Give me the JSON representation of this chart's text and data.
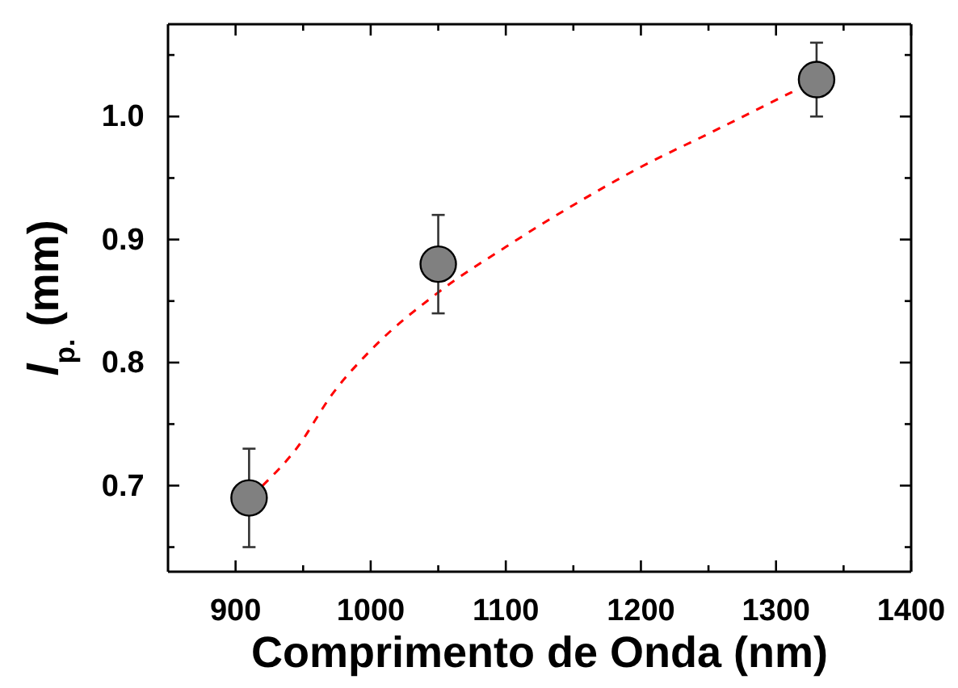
{
  "chart_data": {
    "type": "scatter",
    "xlabel": "Comprimento de Onda (nm)",
    "ylabel": "l$_{p.}$ (mm)",
    "xlim": [
      850,
      1400
    ],
    "ylim": [
      0.63,
      1.075
    ],
    "xticks": [
      900,
      {
        "value": 950,
        "label": null
      },
      1000,
      {
        "value": 1050,
        "label": null
      },
      1100,
      {
        "value": 1150,
        "label": null
      },
      1200,
      {
        "value": 1250,
        "label": null
      },
      1300,
      {
        "value": 1350,
        "label": null
      },
      1400
    ],
    "yticks": [
      {
        "value": 0.65,
        "label": null
      },
      0.7,
      {
        "value": 0.75,
        "label": null
      },
      0.8,
      {
        "value": 0.85,
        "label": null
      },
      0.9,
      {
        "value": 0.95,
        "label": null
      },
      {
        "value": 1.0,
        "label": "1.0"
      },
      {
        "value": 1.05,
        "label": null
      }
    ],
    "grid": false,
    "series": [
      {
        "type": "line",
        "color": "#ff0000",
        "line_style": "dashed",
        "marker": "none",
        "x": [
          920,
          945,
          972,
          1000,
          1050,
          1100,
          1150,
          1200,
          1250,
          1312
        ],
        "values": [
          0.7,
          0.73,
          0.775,
          0.81,
          0.857,
          0.894,
          0.928,
          0.959,
          0.986,
          1.02
        ]
      },
      {
        "color": "#808080",
        "marker": "circle",
        "x": [
          910,
          1050,
          1330
        ],
        "values": [
          0.69,
          0.88,
          1.03
        ],
        "errors": [
          0.04,
          0.04,
          0.03
        ]
      }
    ]
  }
}
